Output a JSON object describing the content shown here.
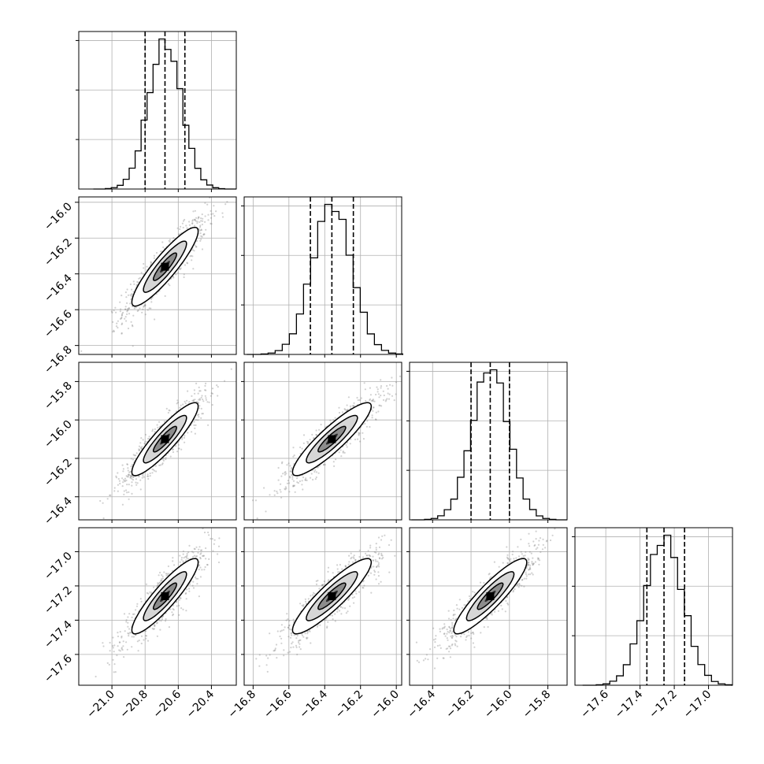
{
  "chart_data": {
    "type": "corner",
    "parameters": 4,
    "axes": [
      {
        "range": [
          -21.2,
          -20.25
        ],
        "ticks": [
          -21.0,
          -20.8,
          -20.6,
          -20.4
        ],
        "tick_labels": [
          "−21.0",
          "−20.8",
          "−20.6",
          "−20.4"
        ]
      },
      {
        "range": [
          -16.85,
          -15.97
        ],
        "ticks": [
          -16.8,
          -16.6,
          -16.4,
          -16.2,
          -16.0
        ],
        "tick_labels": [
          "−16.8",
          "−16.6",
          "−16.4",
          "−16.2",
          "−16.0"
        ]
      },
      {
        "range": [
          -16.52,
          -15.7
        ],
        "ticks": [
          -16.4,
          -16.2,
          -16.0,
          -15.8
        ],
        "tick_labels": [
          "−16.4",
          "−16.2",
          "−16.0",
          "−15.8"
        ]
      },
      {
        "range": [
          -17.78,
          -16.86
        ],
        "ticks": [
          -17.6,
          -17.4,
          -17.2,
          -17.0
        ],
        "tick_labels": [
          "−17.6",
          "−17.4",
          "−17.2",
          "−17.0"
        ]
      }
    ],
    "marginals": [
      {
        "quantiles": [
          -20.8,
          -20.68,
          -20.56
        ],
        "center": -20.68,
        "sigma": 0.1
      },
      {
        "quantiles": [
          -16.48,
          -16.36,
          -16.24
        ],
        "center": -16.36,
        "sigma": 0.11
      },
      {
        "quantiles": [
          -16.2,
          -16.1,
          -16.0
        ],
        "center": -16.1,
        "sigma": 0.095
      },
      {
        "quantiles": [
          -17.36,
          -17.26,
          -17.14
        ],
        "center": -17.26,
        "sigma": 0.11
      }
    ],
    "grid": true,
    "x_labels": [
      "",
      "",
      "",
      ""
    ],
    "y_labels": [
      "",
      "",
      "",
      ""
    ]
  }
}
